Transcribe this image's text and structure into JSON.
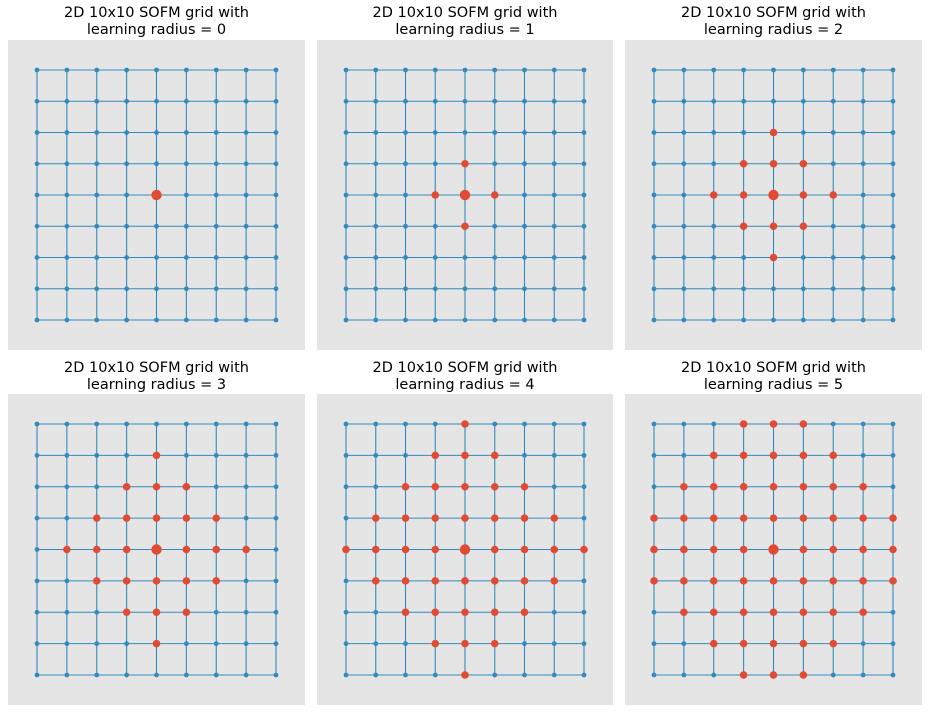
{
  "colors": {
    "background": "#e5e5e5",
    "grid_line": "#348abd",
    "neuron": "#348abd",
    "active_neuron": "#e24a33",
    "winner_neuron": "#e24a33"
  },
  "chart_data": [
    {
      "type": "scatter",
      "title": "2D 10x10 SOFM grid with\nlearning radius = 0",
      "grid_rows": 9,
      "grid_cols": 9,
      "winner": [
        4,
        4
      ],
      "learning_radius": 0
    },
    {
      "type": "scatter",
      "title": "2D 10x10 SOFM grid with\nlearning radius = 1",
      "grid_rows": 9,
      "grid_cols": 9,
      "winner": [
        4,
        4
      ],
      "learning_radius": 1
    },
    {
      "type": "scatter",
      "title": "2D 10x10 SOFM grid with\nlearning radius = 2",
      "grid_rows": 9,
      "grid_cols": 9,
      "winner": [
        4,
        4
      ],
      "learning_radius": 2
    },
    {
      "type": "scatter",
      "title": "2D 10x10 SOFM grid with\nlearning radius = 3",
      "grid_rows": 9,
      "grid_cols": 9,
      "winner": [
        4,
        4
      ],
      "learning_radius": 3
    },
    {
      "type": "scatter",
      "title": "2D 10x10 SOFM grid with\nlearning radius = 4",
      "grid_rows": 9,
      "grid_cols": 9,
      "winner": [
        4,
        4
      ],
      "learning_radius": 4
    },
    {
      "type": "scatter",
      "title": "2D 10x10 SOFM grid with\nlearning radius = 5",
      "grid_rows": 9,
      "grid_cols": 9,
      "winner": [
        4,
        4
      ],
      "learning_radius": 5
    }
  ]
}
